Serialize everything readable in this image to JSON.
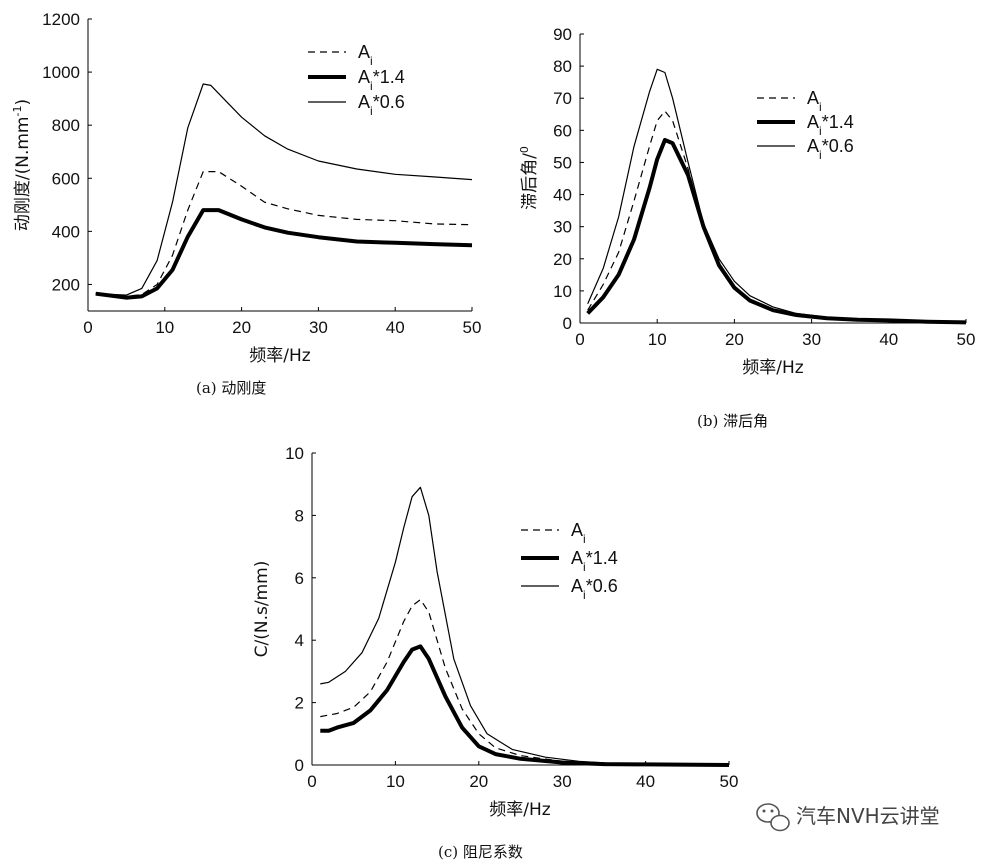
{
  "chart_data": [
    {
      "id": "a",
      "type": "line",
      "caption": "(a) 动刚度",
      "xlabel": "频率/Hz",
      "ylabel": "动刚度/(N.mm",
      "ylabel_sup": "-1",
      "ylabel_close": ")",
      "xlim": [
        0,
        50
      ],
      "ylim": [
        100,
        1200
      ],
      "xticks": [
        0,
        10,
        20,
        30,
        40,
        50
      ],
      "yticks": [
        200,
        400,
        600,
        800,
        1000,
        1200
      ],
      "legend": "top-right",
      "series": [
        {
          "name": "Ai",
          "style": "dashed",
          "x": [
            1,
            3,
            5,
            7,
            9,
            11,
            13,
            15,
            17,
            20,
            23,
            26,
            30,
            35,
            40,
            45,
            50
          ],
          "y": [
            165,
            160,
            155,
            162,
            200,
            310,
            480,
            625,
            625,
            570,
            510,
            485,
            460,
            445,
            440,
            428,
            425
          ]
        },
        {
          "name": "Ai*1.4",
          "style": "thick",
          "x": [
            1,
            3,
            5,
            7,
            9,
            11,
            13,
            15,
            17,
            20,
            23,
            26,
            30,
            35,
            40,
            45,
            50
          ],
          "y": [
            165,
            158,
            150,
            155,
            185,
            255,
            380,
            480,
            480,
            445,
            415,
            395,
            378,
            362,
            357,
            352,
            348
          ]
        },
        {
          "name": "Ai*0.6",
          "style": "thin",
          "x": [
            1,
            3,
            5,
            7,
            9,
            11,
            13,
            15,
            16,
            18,
            20,
            23,
            26,
            30,
            35,
            40,
            45,
            50
          ],
          "y": [
            165,
            163,
            160,
            185,
            290,
            510,
            790,
            955,
            950,
            890,
            830,
            760,
            710,
            665,
            635,
            615,
            605,
            595
          ]
        }
      ]
    },
    {
      "id": "b",
      "type": "line",
      "caption": "(b) 滞后角",
      "xlabel": "频率/Hz",
      "ylabel": "滞后角/",
      "ylabel_sup": "0",
      "ylabel_close": "",
      "xlim": [
        0,
        50
      ],
      "ylim": [
        0,
        90
      ],
      "xticks": [
        0,
        10,
        20,
        30,
        40,
        50
      ],
      "yticks": [
        0,
        10,
        20,
        30,
        40,
        50,
        60,
        70,
        80,
        90
      ],
      "legend": "top-right",
      "series": [
        {
          "name": "Ai",
          "style": "dashed",
          "x": [
            1,
            3,
            5,
            7,
            9,
            10,
            11,
            12,
            14,
            16,
            18,
            20,
            22,
            25,
            28,
            32,
            36,
            40,
            45,
            50
          ],
          "y": [
            4,
            12,
            22,
            38,
            55,
            63,
            66,
            63,
            48,
            30,
            18,
            11,
            7,
            4,
            2.5,
            1.5,
            1,
            0.8,
            0.4,
            0.2
          ]
        },
        {
          "name": "Ai*1.4",
          "style": "thick",
          "x": [
            1,
            3,
            5,
            7,
            9,
            10,
            11,
            12,
            14,
            16,
            18,
            20,
            22,
            25,
            28,
            32,
            36,
            40,
            45,
            50
          ],
          "y": [
            3,
            8,
            15,
            26,
            42,
            51,
            57,
            56,
            46,
            30,
            18,
            11,
            7,
            4,
            2.5,
            1.5,
            1,
            0.8,
            0.4,
            0.2
          ]
        },
        {
          "name": "Ai*0.6",
          "style": "thin",
          "x": [
            1,
            3,
            5,
            7,
            9,
            10,
            11,
            12,
            14,
            16,
            18,
            20,
            22,
            25,
            28,
            32,
            36,
            40,
            45,
            50
          ],
          "y": [
            6,
            17,
            33,
            55,
            72,
            79,
            78,
            70,
            50,
            31,
            20,
            13,
            8.5,
            5,
            3,
            1.8,
            1.2,
            0.9,
            0.5,
            0.2
          ]
        }
      ]
    },
    {
      "id": "c",
      "type": "line",
      "caption": "(c) 阻尼系数",
      "xlabel": "频率/Hz",
      "ylabel": "C/(N.s/mm)",
      "ylabel_sup": "",
      "ylabel_close": "",
      "xlim": [
        0,
        50
      ],
      "ylim": [
        0,
        10
      ],
      "xticks": [
        0,
        10,
        20,
        30,
        40,
        50
      ],
      "yticks": [
        0,
        2,
        4,
        6,
        8,
        10
      ],
      "legend": "top-right",
      "series": [
        {
          "name": "Ai",
          "style": "dashed",
          "x": [
            1,
            3,
            5,
            7,
            9,
            11,
            12,
            13,
            14,
            16,
            18,
            20,
            22,
            25,
            30,
            35,
            40,
            50
          ],
          "y": [
            1.55,
            1.65,
            1.85,
            2.35,
            3.3,
            4.6,
            5.1,
            5.3,
            4.9,
            3.1,
            1.8,
            1.0,
            0.55,
            0.3,
            0.12,
            0.05,
            0.03,
            0
          ]
        },
        {
          "name": "Ai*1.4",
          "style": "thick",
          "x": [
            1,
            2,
            3,
            5,
            7,
            9,
            11,
            12,
            13,
            14,
            16,
            18,
            20,
            22,
            25,
            30,
            35,
            40,
            50
          ],
          "y": [
            1.1,
            1.1,
            1.2,
            1.35,
            1.75,
            2.4,
            3.3,
            3.7,
            3.8,
            3.4,
            2.2,
            1.2,
            0.6,
            0.35,
            0.2,
            0.08,
            0.03,
            0.02,
            0
          ]
        },
        {
          "name": "Ai*0.6",
          "style": "thin",
          "x": [
            1,
            2,
            4,
            6,
            8,
            10,
            11,
            12,
            13,
            14,
            15,
            17,
            19,
            21,
            24,
            28,
            32,
            36,
            40,
            50
          ],
          "y": [
            2.6,
            2.65,
            3.0,
            3.6,
            4.7,
            6.5,
            7.6,
            8.6,
            8.9,
            8.0,
            6.2,
            3.4,
            1.9,
            1.0,
            0.5,
            0.25,
            0.12,
            0.05,
            0.02,
            0
          ]
        }
      ]
    }
  ],
  "legend_labels": {
    "base": "A",
    "sub": "i"
  },
  "legend_suffixes": [
    "",
    "*1.4",
    "*0.6"
  ],
  "watermark": "汽车NVH云讲堂",
  "colors": {
    "line": "#000000",
    "text": "#111111"
  }
}
